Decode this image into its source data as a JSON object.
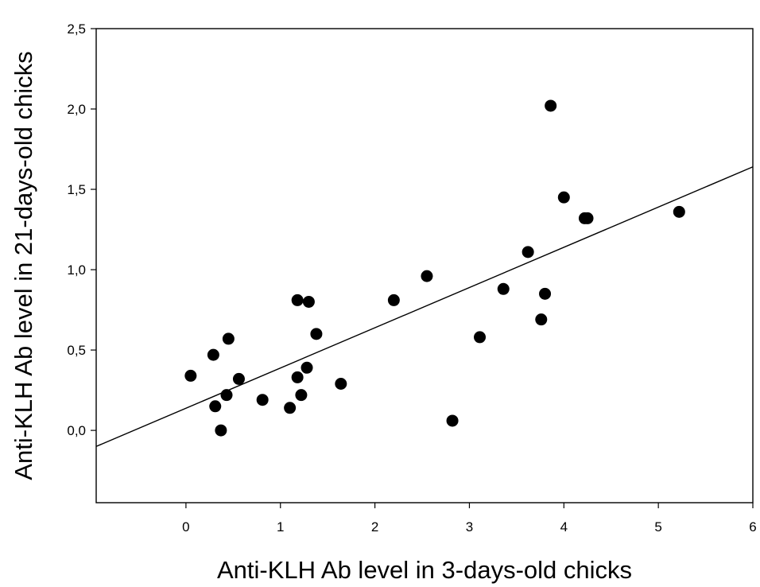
{
  "chart_data": {
    "type": "scatter",
    "title": "",
    "xlabel": "Anti-KLH Ab level in 3-days-old chicks",
    "ylabel": "Anti-KLH Ab level in 21-days-old chicks",
    "xlim": [
      -0.95,
      6
    ],
    "ylim": [
      -0.45,
      2.5
    ],
    "xticks": [
      0,
      1,
      2,
      3,
      4,
      5,
      6
    ],
    "xtick_labels": [
      "0",
      "1",
      "2",
      "3",
      "4",
      "5",
      "6"
    ],
    "yticks": [
      0.0,
      0.5,
      1.0,
      1.5,
      2.0,
      2.5
    ],
    "ytick_labels": [
      "0,0",
      "0,5",
      "1,0",
      "1,5",
      "2,0",
      "2,5"
    ],
    "grid": false,
    "legend": "none",
    "marker_color": "#000000",
    "series": [
      {
        "points": [
          {
            "x": 0.05,
            "y": 0.34
          },
          {
            "x": 0.29,
            "y": 0.47
          },
          {
            "x": 0.31,
            "y": 0.15
          },
          {
            "x": 0.37,
            "y": 0.0
          },
          {
            "x": 0.43,
            "y": 0.22
          },
          {
            "x": 0.45,
            "y": 0.57
          },
          {
            "x": 0.56,
            "y": 0.32
          },
          {
            "x": 0.81,
            "y": 0.19
          },
          {
            "x": 1.1,
            "y": 0.14
          },
          {
            "x": 1.18,
            "y": 0.33
          },
          {
            "x": 1.18,
            "y": 0.81
          },
          {
            "x": 1.22,
            "y": 0.22
          },
          {
            "x": 1.28,
            "y": 0.39
          },
          {
            "x": 1.3,
            "y": 0.8
          },
          {
            "x": 1.38,
            "y": 0.6
          },
          {
            "x": 1.64,
            "y": 0.29
          },
          {
            "x": 2.2,
            "y": 0.81
          },
          {
            "x": 2.55,
            "y": 0.96
          },
          {
            "x": 2.82,
            "y": 0.06
          },
          {
            "x": 3.11,
            "y": 0.58
          },
          {
            "x": 3.36,
            "y": 0.88
          },
          {
            "x": 3.62,
            "y": 1.11
          },
          {
            "x": 3.76,
            "y": 0.69
          },
          {
            "x": 3.8,
            "y": 0.85
          },
          {
            "x": 3.86,
            "y": 2.02
          },
          {
            "x": 4.0,
            "y": 1.45
          },
          {
            "x": 4.22,
            "y": 1.32
          },
          {
            "x": 4.25,
            "y": 1.32
          },
          {
            "x": 5.22,
            "y": 1.36
          }
        ]
      }
    ],
    "fit_line": {
      "x": [
        -0.95,
        6
      ],
      "y": [
        -0.1,
        1.64
      ]
    }
  }
}
